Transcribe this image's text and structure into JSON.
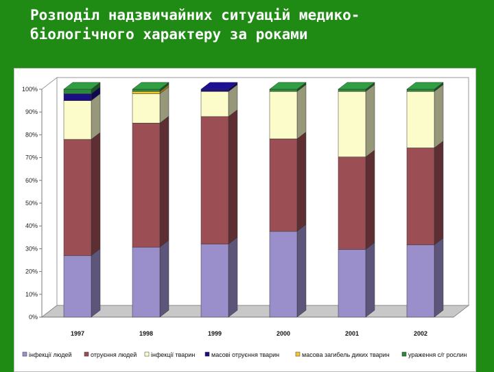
{
  "slide": {
    "title_line1": "Розподіл надзвичайних ситуацій медико-",
    "title_line2": "біологічного характеру за роками"
  },
  "chart_data": {
    "type": "bar",
    "stacked": true,
    "normalized_percent": true,
    "style": "3d",
    "categories": [
      "1997",
      "1998",
      "1999",
      "2000",
      "2001",
      "2002"
    ],
    "y_tick_labels": [
      "0%",
      "10%",
      "20%",
      "30%",
      "40%",
      "50%",
      "60%",
      "70%",
      "80%",
      "90%",
      "100%"
    ],
    "ylim": [
      0,
      100
    ],
    "grid": false,
    "legend_position": "bottom",
    "series": [
      {
        "name": "інфекції людей",
        "color": "#9b8fcb",
        "values": [
          27,
          31,
          32,
          38,
          30,
          32
        ]
      },
      {
        "name": "отруєння людей",
        "color": "#9b4f55",
        "values": [
          51,
          55,
          56,
          41,
          41,
          43
        ]
      },
      {
        "name": "інфекції тварин",
        "color": "#fcfccb",
        "values": [
          17,
          13,
          11,
          21,
          29,
          25
        ]
      },
      {
        "name": "масові отруєння тварин",
        "color": "#1a0e82",
        "values": [
          3,
          0,
          1,
          0,
          0,
          0
        ]
      },
      {
        "name": "масова загибель диких тварин",
        "color": "#f3c82a",
        "values": [
          0,
          1,
          0,
          0,
          0,
          0
        ]
      },
      {
        "name": "ураження с/г рослин",
        "color": "#2a8a3a",
        "values": [
          2,
          1,
          0,
          1,
          1,
          1
        ]
      }
    ]
  }
}
